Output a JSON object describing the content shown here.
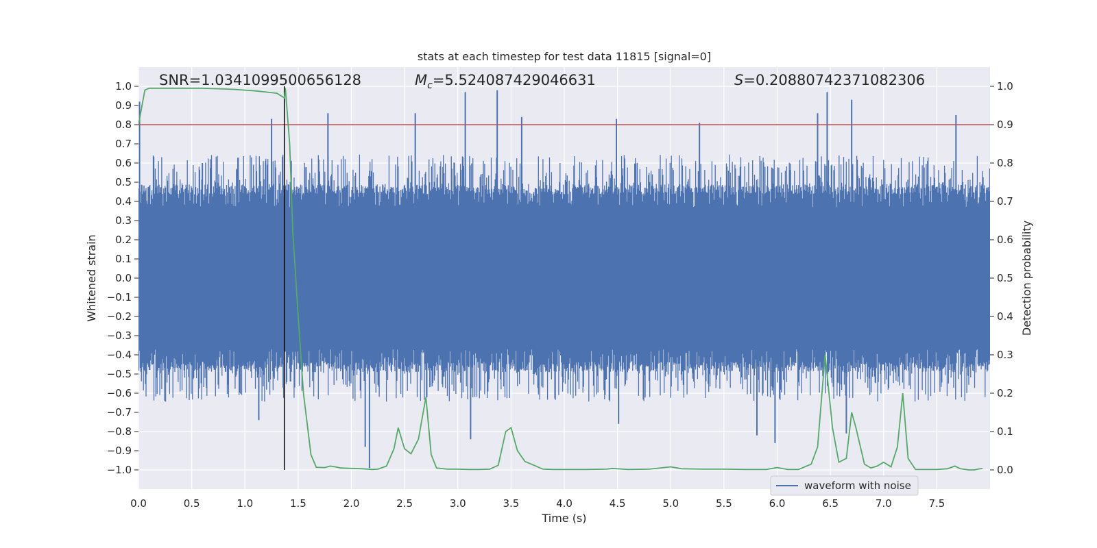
{
  "chart_data": {
    "type": "line",
    "title": "stats at each timestep for test data 11815 [signal=0]",
    "xlabel": "Time (s)",
    "ylabel": "Whitened strain",
    "y2label": "Detection probability",
    "xlim": [
      0,
      8.0
    ],
    "ylim": [
      -1.1,
      1.1
    ],
    "y2lim": [
      -0.05,
      1.05
    ],
    "x_ticks": [
      0.0,
      0.5,
      1.0,
      1.5,
      2.0,
      2.5,
      3.0,
      3.5,
      4.0,
      4.5,
      5.0,
      5.5,
      6.0,
      6.5,
      7.0,
      7.5
    ],
    "x_tick_labels": [
      "0.0",
      "0.5",
      "1.0",
      "1.5",
      "2.0",
      "2.5",
      "3.0",
      "3.5",
      "4.0",
      "4.5",
      "5.0",
      "5.5",
      "6.0",
      "6.5",
      "7.0",
      "7.5"
    ],
    "y_ticks": [
      1.0,
      0.9,
      0.8,
      0.7,
      0.6,
      0.5,
      0.4,
      0.3,
      0.2,
      0.1,
      0.0,
      -0.1,
      -0.2,
      -0.3,
      -0.4,
      -0.5,
      -0.6,
      -0.7,
      -0.8,
      -0.9,
      -1.0
    ],
    "y_tick_labels": [
      "1.0",
      "0.9",
      "0.8",
      "0.7",
      "0.6",
      "0.5",
      "0.4",
      "0.3",
      "0.2",
      "0.1",
      "0.0",
      "−0.1",
      "−0.2",
      "−0.3",
      "−0.4",
      "−0.5",
      "−0.6",
      "−0.7",
      "−0.8",
      "−0.9",
      "−1.0"
    ],
    "y2_ticks": [
      1.0,
      0.9,
      0.8,
      0.7,
      0.6,
      0.5,
      0.4,
      0.3,
      0.2,
      0.1,
      0.0
    ],
    "y2_tick_labels": [
      "1.0",
      "0.9",
      "0.8",
      "0.7",
      "0.6",
      "0.5",
      "0.4",
      "0.3",
      "0.2",
      "0.1",
      "0.0"
    ],
    "threshold": 0.9,
    "peak_time": 1.37,
    "annotations": {
      "snr": "SNR=1.0341099500656128",
      "mc_value": "=5.524087429046631",
      "s_value": "=0.20880742371082306"
    },
    "legend": {
      "label": "waveform with noise",
      "position": "lower-right"
    },
    "waveform": {
      "name": "waveform with noise",
      "color": "#4c72b0",
      "base_amplitude": 0.37,
      "spikes": [
        [
          0.01,
          0.92
        ],
        [
          0.6,
          0.6
        ],
        [
          1.25,
          0.83
        ],
        [
          1.78,
          0.86
        ],
        [
          2.6,
          0.86
        ],
        [
          3.07,
          0.97
        ],
        [
          3.37,
          0.98
        ],
        [
          3.6,
          0.84
        ],
        [
          4.49,
          0.83
        ],
        [
          5.27,
          0.81
        ],
        [
          6.38,
          0.86
        ],
        [
          6.47,
          0.97
        ],
        [
          6.7,
          0.93
        ],
        [
          7.68,
          0.85
        ],
        [
          2.17,
          -0.99
        ],
        [
          2.13,
          -0.88
        ],
        [
          3.12,
          -0.84
        ],
        [
          1.13,
          -0.74
        ],
        [
          4.51,
          -0.76
        ],
        [
          5.81,
          -0.82
        ],
        [
          5.98,
          -0.86
        ],
        [
          6.65,
          -0.81
        ]
      ]
    },
    "probability": {
      "name": "detection probability",
      "color": "#55a868",
      "x": [
        0.0,
        0.06,
        0.1,
        0.2,
        0.3,
        0.4,
        0.5,
        0.6,
        0.7,
        0.8,
        0.9,
        1.0,
        1.1,
        1.2,
        1.3,
        1.37,
        1.38,
        1.42,
        1.45,
        1.5,
        1.55,
        1.62,
        1.67,
        1.75,
        1.8,
        1.85,
        1.9,
        2.0,
        2.1,
        2.2,
        2.25,
        2.33,
        2.4,
        2.44,
        2.5,
        2.56,
        2.63,
        2.7,
        2.75,
        2.8,
        2.9,
        3.0,
        3.1,
        3.2,
        3.3,
        3.38,
        3.45,
        3.5,
        3.56,
        3.63,
        3.7,
        3.8,
        3.9,
        4.0,
        4.2,
        4.4,
        4.45,
        4.6,
        4.8,
        5.0,
        5.1,
        5.3,
        5.5,
        5.7,
        5.9,
        6.0,
        6.1,
        6.2,
        6.32,
        6.38,
        6.45,
        6.52,
        6.58,
        6.65,
        6.7,
        6.74,
        6.82,
        6.88,
        6.94,
        7.0,
        7.07,
        7.13,
        7.18,
        7.23,
        7.3,
        7.4,
        7.5,
        7.6,
        7.67,
        7.72,
        7.8,
        7.85,
        7.93
      ],
      "y": [
        0.9,
        0.99,
        0.995,
        0.995,
        0.995,
        0.995,
        0.995,
        0.995,
        0.994,
        0.993,
        0.992,
        0.99,
        0.988,
        0.985,
        0.982,
        0.97,
        0.995,
        0.85,
        0.62,
        0.4,
        0.2,
        0.04,
        0.007,
        0.006,
        0.01,
        0.008,
        0.005,
        0.004,
        0.003,
        0.001,
        0.002,
        0.01,
        0.055,
        0.11,
        0.055,
        0.042,
        0.08,
        0.19,
        0.04,
        0.005,
        0.002,
        0.002,
        0.001,
        0.001,
        0.002,
        0.012,
        0.1,
        0.11,
        0.05,
        0.022,
        0.014,
        0.002,
        0.001,
        0.001,
        0.001,
        0.002,
        0.004,
        0.001,
        0.002,
        0.008,
        0.003,
        0.002,
        0.002,
        0.001,
        0.001,
        0.006,
        0.001,
        0.001,
        0.015,
        0.06,
        0.3,
        0.11,
        0.02,
        0.03,
        0.15,
        0.11,
        0.015,
        0.005,
        0.01,
        0.02,
        0.008,
        0.06,
        0.2,
        0.03,
        0.001,
        0.001,
        0.001,
        0.003,
        0.01,
        0.003,
        0.0,
        0.0,
        0.004
      ]
    }
  }
}
